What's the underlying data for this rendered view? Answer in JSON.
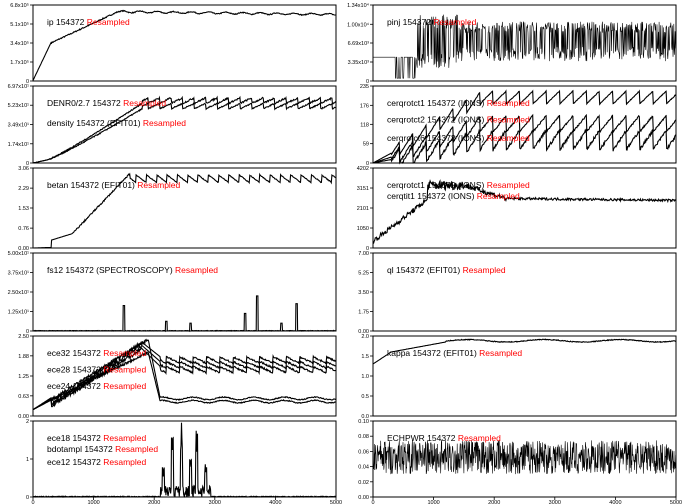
{
  "resample_color": "#ff0000",
  "line_color": "#000000",
  "x_axis": {
    "range": [
      0,
      5000
    ],
    "ticks": [
      0,
      1000,
      2000,
      3000,
      4000,
      5000
    ]
  },
  "chart_data": [
    {
      "id": "ip",
      "type": "line",
      "ylim": [
        0,
        6.8
      ],
      "ticks": [
        {
          "v": 0,
          "t": "0"
        },
        {
          "v": 1.7,
          "t": "1.7x10⁵"
        },
        {
          "v": 3.4,
          "t": "3.4x10⁵"
        },
        {
          "v": 5.1,
          "t": "5.1x10⁵"
        },
        {
          "v": 6.8,
          "t": "6.8x10⁵"
        }
      ],
      "labels": [
        {
          "text": "ip  154372",
          "tag": "Resampled",
          "row": 0
        }
      ],
      "series": [
        {
          "shape": "plateau",
          "params": [
            300,
            1400,
            6.2,
            0.08
          ]
        }
      ]
    },
    {
      "id": "pinj",
      "type": "line",
      "ylim": [
        0,
        1.34
      ],
      "ticks": [
        {
          "v": 0,
          "t": "0"
        },
        {
          "v": 0.335,
          "t": "3.35x10³"
        },
        {
          "v": 0.67,
          "t": "6.69x10³"
        },
        {
          "v": 1.0,
          "t": "1.00x10⁴"
        },
        {
          "v": 1.34,
          "t": "1.34x10⁴"
        }
      ],
      "labels": [
        {
          "text": "pinj  154372",
          "tag": "Resampled",
          "row": 0
        }
      ],
      "series": [
        {
          "shape": "pinj",
          "params": []
        }
      ]
    },
    {
      "id": "dens",
      "type": "line",
      "ylim": [
        0,
        6.97
      ],
      "ticks": [
        {
          "v": 0,
          "t": "0"
        },
        {
          "v": 1.74,
          "t": "1.74x10¹"
        },
        {
          "v": 3.49,
          "t": "3.49x10¹"
        },
        {
          "v": 5.23,
          "t": "5.23x10¹"
        },
        {
          "v": 6.97,
          "t": "6.97x10¹"
        }
      ],
      "labels": [
        {
          "text": "DENR0/2.7  154372",
          "tag": "Resampled",
          "row": 0
        },
        {
          "text": "density  154372 (EFIT01)",
          "tag": "Resampled",
          "row": 1.8
        }
      ],
      "series": [
        {
          "shape": "ramp",
          "params": [
            1800,
            5.4,
            0.15
          ]
        },
        {
          "shape": "ramp",
          "params": [
            1800,
            4.9,
            0.1
          ]
        }
      ]
    },
    {
      "id": "cerq",
      "type": "line",
      "ylim": [
        0,
        235
      ],
      "ticks": [
        {
          "v": 0,
          "t": "0"
        },
        {
          "v": 59,
          "t": "59"
        },
        {
          "v": 118,
          "t": "118"
        },
        {
          "v": 176,
          "t": "176"
        },
        {
          "v": 235,
          "t": "235"
        }
      ],
      "labels": [
        {
          "text": "cerqrotct1  154372 (IONS)",
          "tag": "Resampled",
          "row": 0
        },
        {
          "text": "cerqrotct2  154372 (IONS)",
          "tag": "Resampled",
          "row": 1.5
        },
        {
          "text": "cerqrotct6  154372 (IONS)",
          "tag": "Resampled",
          "row": 3.2
        }
      ],
      "series": [
        {
          "shape": "saw",
          "params": [
            200,
            20,
            0.12
          ]
        },
        {
          "shape": "saw",
          "params": [
            120,
            25,
            0.2
          ]
        },
        {
          "shape": "saw",
          "params": [
            70,
            30,
            0.3
          ]
        }
      ]
    },
    {
      "id": "betan",
      "type": "line",
      "ylim": [
        0,
        3.06
      ],
      "ticks": [
        {
          "v": 0,
          "t": "0.00"
        },
        {
          "v": 0.76,
          "t": "0.76"
        },
        {
          "v": 1.53,
          "t": "1.53"
        },
        {
          "v": 2.29,
          "t": "2.29"
        },
        {
          "v": 3.06,
          "t": "3.06"
        }
      ],
      "labels": [
        {
          "text": "betan  154372 (EFIT01)",
          "tag": "Resampled",
          "row": 0
        }
      ],
      "series": [
        {
          "shape": "betan",
          "params": []
        }
      ]
    },
    {
      "id": "cerqti",
      "type": "line",
      "ylim": [
        0,
        4202
      ],
      "ticks": [
        {
          "v": 0,
          "t": "0"
        },
        {
          "v": 1050,
          "t": "1050"
        },
        {
          "v": 2101,
          "t": "2101"
        },
        {
          "v": 3151,
          "t": "3151"
        },
        {
          "v": 4202,
          "t": "4202"
        }
      ],
      "labels": [
        {
          "text": "cerqrotct1  154372 (IONS)",
          "tag": "Resampled",
          "row": 0
        },
        {
          "text": "cerqtit1  154372 (IONS)",
          "tag": "Resampled",
          "row": 1
        }
      ],
      "series": [
        {
          "shape": "ti",
          "params": []
        }
      ]
    },
    {
      "id": "fs12",
      "type": "line",
      "ylim": [
        0,
        5.0
      ],
      "ticks": [
        {
          "v": 0,
          "t": "0"
        },
        {
          "v": 1.25,
          "t": "1.25x10¹"
        },
        {
          "v": 2.5,
          "t": "2.50x10¹"
        },
        {
          "v": 3.75,
          "t": "3.75x10¹"
        },
        {
          "v": 5.0,
          "t": "5.00x10¹"
        }
      ],
      "labels": [
        {
          "text": "fs12  154372 (SPECTROSCOPY)",
          "tag": "Resampled",
          "row": 0
        }
      ],
      "series": [
        {
          "shape": "spikes",
          "params": []
        }
      ]
    },
    {
      "id": "ql",
      "type": "line",
      "ylim": [
        0,
        7.0
      ],
      "ticks": [
        {
          "v": 0,
          "t": "0.00"
        },
        {
          "v": 1.75,
          "t": "1.75"
        },
        {
          "v": 3.5,
          "t": "3.50"
        },
        {
          "v": 5.25,
          "t": "5.25"
        },
        {
          "v": 7.0,
          "t": "7.00"
        }
      ],
      "labels": [
        {
          "text": "ql  154372 (EFIT01)",
          "tag": "Resampled",
          "row": 0
        }
      ],
      "series": []
    },
    {
      "id": "ece",
      "type": "line",
      "ylim": [
        0,
        2.5
      ],
      "ticks": [
        {
          "v": 0,
          "t": "0.00"
        },
        {
          "v": 0.63,
          "t": "0.63"
        },
        {
          "v": 1.25,
          "t": "1.25"
        },
        {
          "v": 1.88,
          "t": "1.88"
        },
        {
          "v": 2.5,
          "t": "2.50"
        }
      ],
      "labels": [
        {
          "text": "ece32  154372",
          "tag": "Resampled",
          "row": 0
        },
        {
          "text": "ece28  154372",
          "tag": "Resampled",
          "row": 1.5
        },
        {
          "text": "ece24  154372",
          "tag": "Resampled",
          "row": 3
        }
      ],
      "series": [
        {
          "shape": "ece",
          "params": [
            1.85,
            2.3
          ]
        },
        {
          "shape": "ece",
          "params": [
            1.7,
            2.2
          ]
        },
        {
          "shape": "ece",
          "params": [
            1.55,
            2.1
          ]
        },
        {
          "shape": "ece2",
          "params": [
            0.55,
            2.4
          ]
        },
        {
          "shape": "ece2",
          "params": [
            0.45,
            2.0
          ]
        }
      ]
    },
    {
      "id": "kappa",
      "type": "line",
      "ylim": [
        0,
        2.0
      ],
      "ticks": [
        {
          "v": 0,
          "t": "0.0"
        },
        {
          "v": 0.5,
          "t": "0.5"
        },
        {
          "v": 1.0,
          "t": "1.0"
        },
        {
          "v": 1.5,
          "t": "1.5"
        },
        {
          "v": 2.0,
          "t": "2.0"
        }
      ],
      "labels": [
        {
          "text": "kappa  154372 (EFIT01)",
          "tag": "Resampled",
          "row": 0
        }
      ],
      "series": [
        {
          "shape": "kappa",
          "params": []
        }
      ]
    },
    {
      "id": "ece_low",
      "type": "line",
      "ylim": [
        0,
        2.0
      ],
      "ticks": [
        {
          "v": 0,
          "t": "0"
        },
        {
          "v": 1,
          "t": "1"
        },
        {
          "v": 2,
          "t": "2"
        }
      ],
      "labels": [
        {
          "text": "ece18  154372",
          "tag": "Resampled",
          "row": 0
        },
        {
          "text": "bdotampl  154372",
          "tag": "Resampled",
          "row": 1
        },
        {
          "text": "ece12  154372",
          "tag": "Resampled",
          "row": 2.2
        }
      ],
      "series": [
        {
          "shape": "bdot",
          "params": []
        }
      ]
    },
    {
      "id": "echpwr",
      "type": "line",
      "ylim": [
        0,
        0.1
      ],
      "ticks": [
        {
          "v": 0,
          "t": "0.00"
        },
        {
          "v": 0.02,
          "t": "0.02"
        },
        {
          "v": 0.04,
          "t": "0.04"
        },
        {
          "v": 0.06,
          "t": "0.06"
        },
        {
          "v": 0.08,
          "t": "0.08"
        },
        {
          "v": 0.1,
          "t": "0.10"
        }
      ],
      "labels": [
        {
          "text": "ECHPWR  154372",
          "tag": "Resampled",
          "row": 0
        }
      ],
      "series": [
        {
          "shape": "noise",
          "params": []
        }
      ]
    }
  ]
}
